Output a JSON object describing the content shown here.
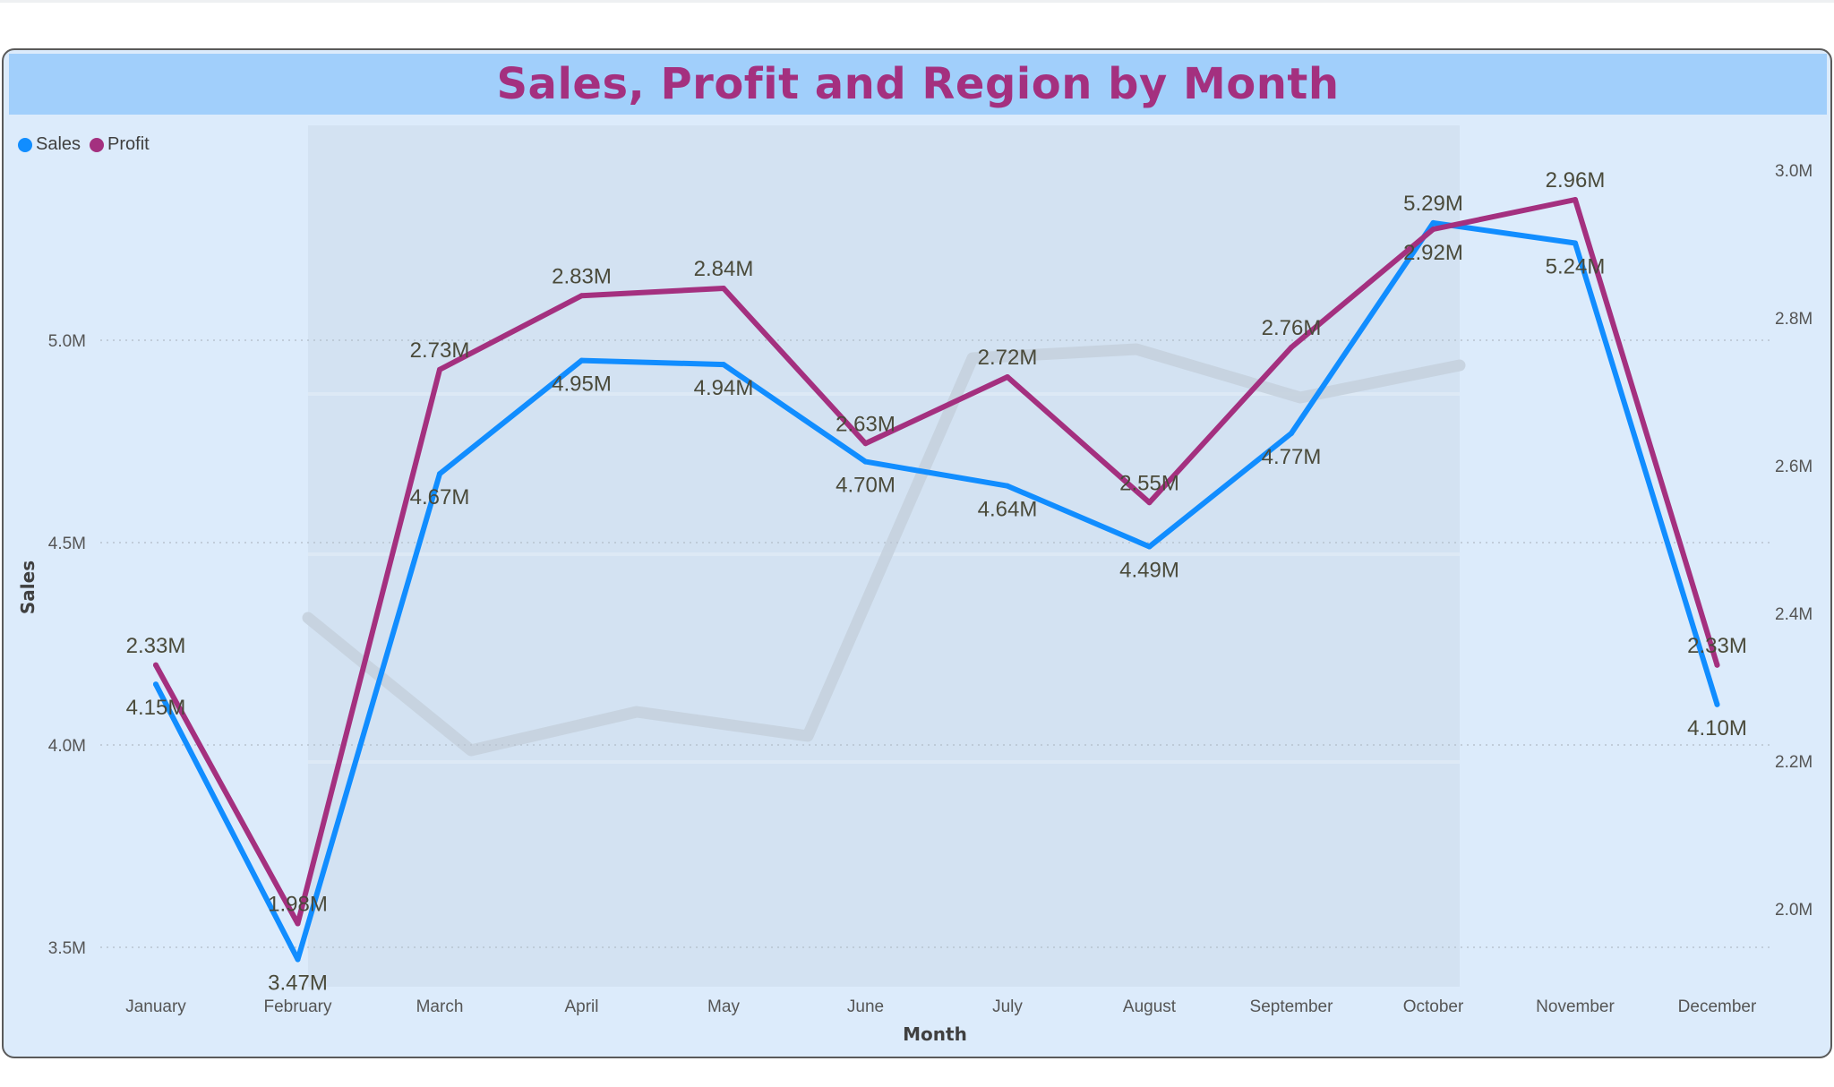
{
  "title": "Sales, Profit and Region by Month",
  "legend": [
    {
      "name": "Sales",
      "color": "#118dff"
    },
    {
      "name": "Profit",
      "color": "#a4307f"
    }
  ],
  "colors": {
    "card_background": "#dcebfb",
    "title_background": "#a1cffb",
    "title_text": "#a4307f",
    "sales": "#118dff",
    "profit": "#a4307f",
    "background_shape": "#c5d2de"
  },
  "chart_data": {
    "type": "line",
    "title": "Sales, Profit and Region by Month",
    "xlabel": "Month",
    "ylabel": "Sales",
    "categories": [
      "January",
      "February",
      "March",
      "April",
      "May",
      "June",
      "July",
      "August",
      "September",
      "October",
      "November",
      "December"
    ],
    "y_left": {
      "ylim": [
        3.4,
        5.45
      ],
      "ticks": [
        3.5,
        4.0,
        4.5,
        5.0
      ],
      "tick_labels": [
        "3.5M",
        "4.0M",
        "4.5M",
        "5.0M"
      ]
    },
    "y_right": {
      "ylim": [
        1.9,
        3.07
      ],
      "ticks": [
        2.0,
        2.2,
        2.4,
        2.6,
        2.8,
        3.0
      ],
      "tick_labels": [
        "2.0M",
        "2.2M",
        "2.4M",
        "2.6M",
        "2.8M",
        "3.0M"
      ]
    },
    "grid": "horizontal dotted",
    "legend_position": "top-left",
    "series": [
      {
        "name": "Sales",
        "axis": "left",
        "values": [
          4.15,
          3.47,
          4.67,
          4.95,
          4.94,
          4.7,
          4.64,
          4.49,
          4.77,
          5.29,
          5.24,
          4.1
        ],
        "labels": [
          "4.15M",
          "3.47M",
          "4.67M",
          "4.95M",
          "4.94M",
          "4.70M",
          "4.64M",
          "4.49M",
          "4.77M",
          "5.29M",
          "5.24M",
          "4.10M"
        ]
      },
      {
        "name": "Profit",
        "axis": "right",
        "values": [
          2.33,
          1.98,
          2.73,
          2.83,
          2.84,
          2.63,
          2.72,
          2.55,
          2.76,
          2.92,
          2.96,
          2.33
        ],
        "labels": [
          "2.33M",
          "1.98M",
          "2.73M",
          "2.83M",
          "2.84M",
          "2.63M",
          "2.72M",
          "2.55M",
          "2.76M",
          "2.92M",
          "2.96M",
          "2.33M"
        ]
      }
    ]
  }
}
